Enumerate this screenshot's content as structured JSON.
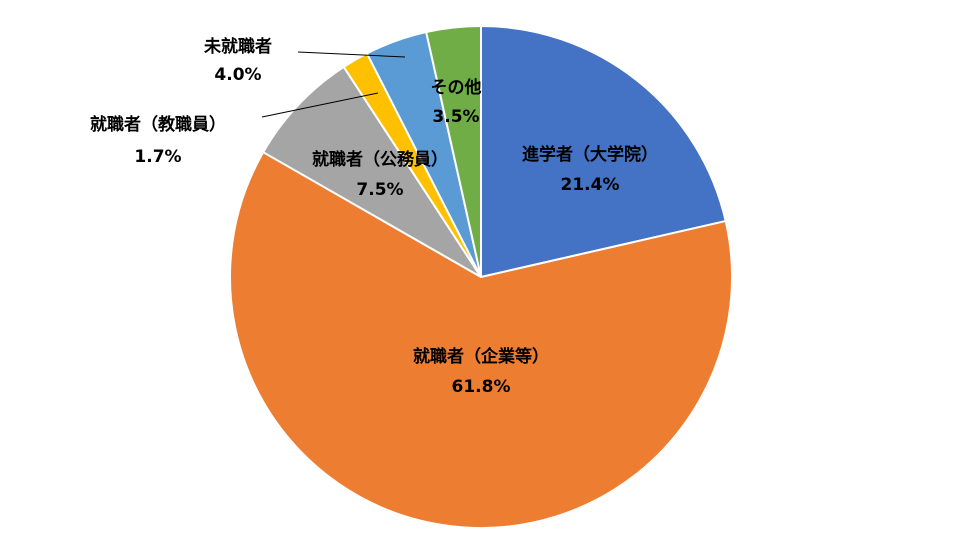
{
  "chart_data": {
    "type": "pie",
    "categories": [
      "進学者（大学院）",
      "就職者（企業等）",
      "就職者（公務員）",
      "就職者（教職員）",
      "未就職者",
      "その他"
    ],
    "values": [
      21.4,
      61.8,
      7.5,
      1.7,
      4.0,
      3.5
    ],
    "value_labels": [
      "21.4%",
      "61.8%",
      "7.5%",
      "1.7%",
      "4.0%",
      "3.5%"
    ],
    "colors": [
      "#4472c4",
      "#ed7d31",
      "#a5a5a5",
      "#ffc000",
      "#5b9bd5",
      "#70ad47"
    ]
  }
}
